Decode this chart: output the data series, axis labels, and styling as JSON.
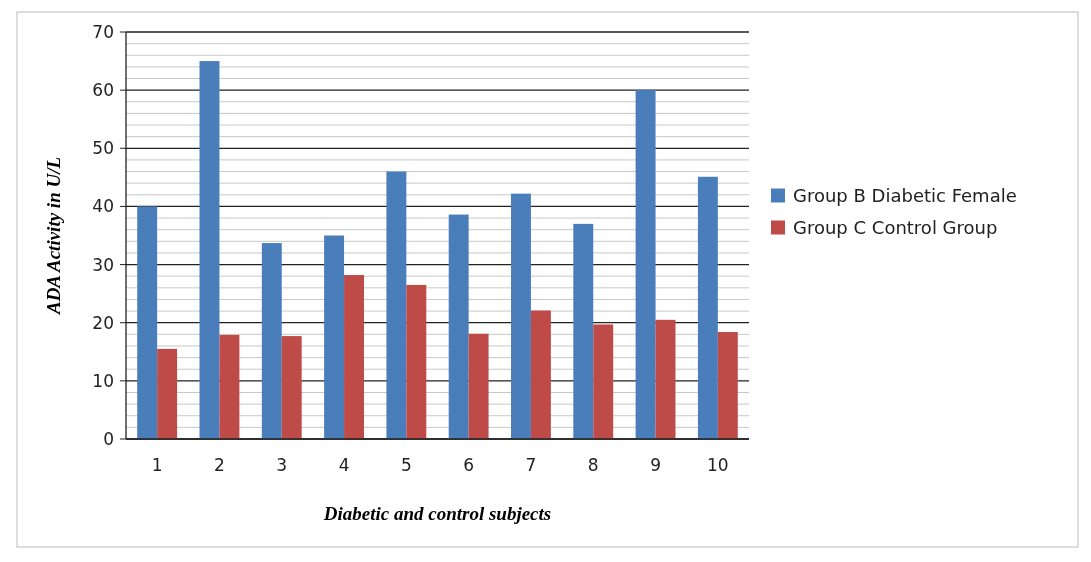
{
  "chart_data": {
    "type": "bar",
    "xlabel": "Diabetic and control subjects",
    "ylabel": "ADA Activity in U/L",
    "categories": [
      "1",
      "2",
      "3",
      "4",
      "5",
      "6",
      "7",
      "8",
      "9",
      "10"
    ],
    "series": [
      {
        "name": "Group B Diabetic Female",
        "color": "#4a7ebb",
        "values": [
          40,
          65,
          33.7,
          35,
          46,
          38.6,
          42.2,
          37,
          60,
          45.1
        ]
      },
      {
        "name": "Group C Control Group",
        "color": "#be4b48",
        "values": [
          15.5,
          17.9,
          17.7,
          28.2,
          26.5,
          18.1,
          22.1,
          19.7,
          20.5,
          18.4
        ]
      }
    ],
    "ylim": [
      0,
      70
    ],
    "yticks": [
      0,
      {
        "value": 2,
        "label": null
      },
      {
        "value": 4,
        "label": null
      },
      {
        "value": 6,
        "label": null
      },
      {
        "value": 8,
        "label": null
      },
      10,
      {
        "value": 12,
        "label": null
      },
      {
        "value": 14,
        "label": null
      },
      {
        "value": 16,
        "label": null
      },
      {
        "value": 18,
        "label": null
      },
      20,
      {
        "value": 22,
        "label": null
      },
      {
        "value": 24,
        "label": null
      },
      {
        "value": 26,
        "label": null
      },
      {
        "value": 28,
        "label": null
      },
      30,
      {
        "value": 32,
        "label": null
      },
      {
        "value": 34,
        "label": null
      },
      {
        "value": 36,
        "label": null
      },
      {
        "value": 38,
        "label": null
      },
      40,
      {
        "value": 42,
        "label": null
      },
      {
        "value": 44,
        "label": null
      },
      {
        "value": 46,
        "label": null
      },
      {
        "value": 48,
        "label": null
      },
      50,
      {
        "value": 52,
        "label": null
      },
      {
        "value": 54,
        "label": null
      },
      {
        "value": 56,
        "label": null
      },
      {
        "value": 58,
        "label": null
      },
      60,
      {
        "value": 62,
        "label": null
      },
      {
        "value": 64,
        "label": null
      },
      {
        "value": 66,
        "label": null
      },
      {
        "value": 68,
        "label": null
      },
      70
    ],
    "grid": true,
    "legend": "right"
  }
}
